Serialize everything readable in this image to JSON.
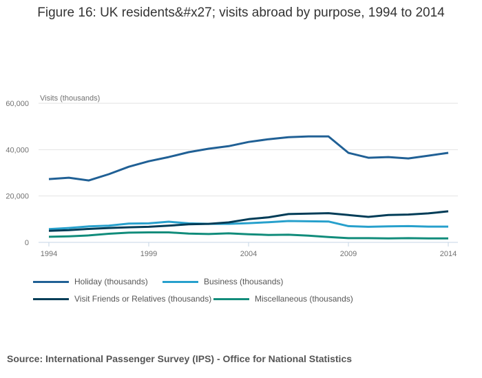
{
  "chart_data": {
    "type": "line",
    "title": "Figure 16: UK residents&#x27; visits abroad by purpose, 1994 to 2014",
    "ylabel": "Visits (thousands)",
    "xlabel": "",
    "ylim": [
      0,
      60000
    ],
    "yticks": [
      "0",
      "20,000",
      "40,000",
      "60,000"
    ],
    "ytick_values": [
      0,
      20000,
      40000,
      60000
    ],
    "xticks": [
      "1994",
      "1999",
      "2004",
      "2009",
      "2014"
    ],
    "x": [
      1994,
      1995,
      1996,
      1997,
      1998,
      1999,
      2000,
      2001,
      2002,
      2003,
      2004,
      2005,
      2006,
      2007,
      2008,
      2009,
      2010,
      2011,
      2012,
      2013,
      2014
    ],
    "grid": true,
    "legend_position": "bottom",
    "series": [
      {
        "name": "Holiday (thousands)",
        "color": "#206095",
        "values": [
          27300,
          27900,
          26700,
          29400,
          32600,
          35000,
          36800,
          38900,
          40400,
          41500,
          43300,
          44500,
          45400,
          45700,
          45700,
          38600,
          36500,
          36800,
          36200,
          37400,
          38600
        ]
      },
      {
        "name": "Business (thousands)",
        "color": "#27a0cc",
        "values": [
          5700,
          6200,
          6900,
          7200,
          8100,
          8200,
          8900,
          8200,
          8000,
          8000,
          8300,
          8700,
          9200,
          9100,
          9000,
          7000,
          6700,
          6900,
          7000,
          6800,
          6800
        ]
      },
      {
        "name": "Visit Friends or Relatives (thousands)",
        "color": "#003c57",
        "values": [
          5000,
          5300,
          5800,
          6200,
          6500,
          6700,
          7200,
          7800,
          8000,
          8600,
          10000,
          10800,
          12200,
          12400,
          12600,
          11800,
          11000,
          11800,
          12000,
          12500,
          13400
        ]
      },
      {
        "name": "Miscellaneous (thousands)",
        "color": "#118c7b",
        "values": [
          2400,
          2600,
          3000,
          3700,
          4200,
          4300,
          4300,
          3800,
          3600,
          3900,
          3500,
          3200,
          3300,
          2900,
          2300,
          1800,
          1800,
          1700,
          1800,
          1700,
          1700
        ]
      }
    ]
  },
  "source": "Source: International Passenger Survey (IPS) - Office for National Statistics"
}
